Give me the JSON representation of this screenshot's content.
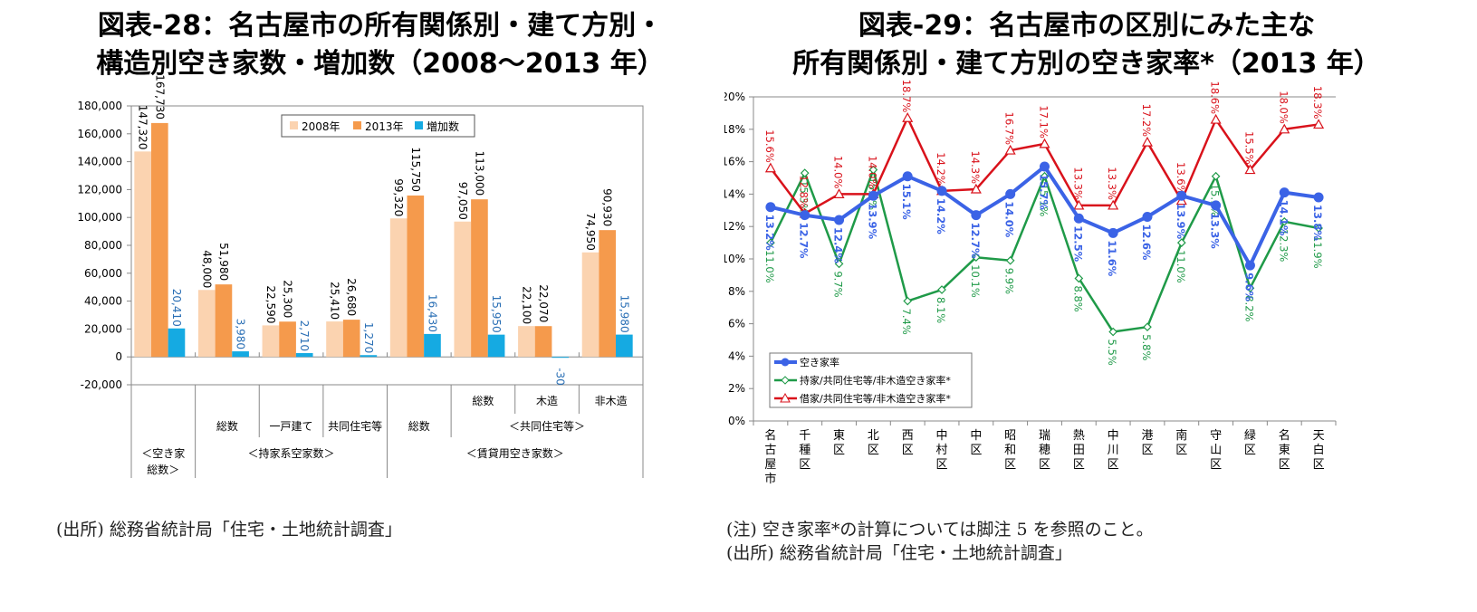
{
  "figure28": {
    "title_line1": "図表-28：名古屋市の所有関係別・建て方別・",
    "title_line2": "構造別空き家数・増加数（2008～2013 年）",
    "source_note": "(出所) 総務省統計局「住宅・土地統計調査」"
  },
  "figure29": {
    "title_line1": "図表-29：名古屋市の区別にみた主な",
    "title_line2": "所有関係別・建て方別の空き家率*（2013 年）",
    "note_line1": "(注) 空き家率*の計算については脚注 5 を参照のこと。",
    "note_line2": "(出所) 総務省統計局「住宅・土地統計調査」"
  },
  "chart_data": [
    {
      "type": "bar",
      "title": "図表-28：名古屋市の所有関係別・建て方別・構造別空き家数・増加数（2008～2013 年）",
      "ylim": [
        -20000,
        180000
      ],
      "yticks": [
        180000,
        160000,
        140000,
        120000,
        100000,
        80000,
        60000,
        40000,
        20000,
        0,
        -20000
      ],
      "ytick_labels": [
        "180,000",
        "160,000",
        "140,000",
        "120,000",
        "100,000",
        "80,000",
        "60,000",
        "40,000",
        "20,000",
        "0",
        "-20,000"
      ],
      "grid": false,
      "legend_position": "top-right",
      "categories": [
        "空き家総数",
        "持家系 総数",
        "持家系 一戸建て",
        "持家系 共同住宅等",
        "賃貸用 総数",
        "賃貸用 共同住宅等 総数",
        "賃貸用 共同住宅等 木造",
        "賃貸用 共同住宅等 非木造"
      ],
      "series": [
        {
          "name": "2008年",
          "color": "#fbd3b0",
          "values": [
            147320,
            48000,
            22590,
            25410,
            99320,
            97050,
            22100,
            74950
          ],
          "labels": [
            "147,320",
            "48,000",
            "22,590",
            "25,410",
            "99,320",
            "97,050",
            "22,100",
            "74,950"
          ],
          "label_color": "#000000"
        },
        {
          "name": "2013年",
          "color": "#f59a4c",
          "values": [
            167730,
            51980,
            25300,
            26680,
            115750,
            113000,
            22070,
            90930
          ],
          "labels": [
            "167,730",
            "51,980",
            "25,300",
            "26,680",
            "115,750",
            "113,000",
            "22,070",
            "90,930"
          ],
          "label_color": "#000000"
        },
        {
          "name": "増加数",
          "color": "#15aae2",
          "values": [
            20410,
            3980,
            2710,
            1270,
            16430,
            15950,
            -30,
            15980
          ],
          "labels": [
            "20,410",
            "3,980",
            "2,710",
            "1,270",
            "16,430",
            "15,950",
            "-30",
            "15,980"
          ],
          "label_color": "#2a6fb5"
        }
      ],
      "category_axis": {
        "row1": [
          {
            "label": "総数",
            "span": [
              5,
              5
            ]
          },
          {
            "label": "木造",
            "span": [
              6,
              6
            ]
          },
          {
            "label": "非木造",
            "span": [
              7,
              7
            ]
          }
        ],
        "row2": [
          {
            "label": "総数",
            "span": [
              1,
              1
            ]
          },
          {
            "label": "一戸建て",
            "span": [
              2,
              2
            ]
          },
          {
            "label": "共同住宅等",
            "span": [
              3,
              3
            ]
          },
          {
            "label": "総数",
            "span": [
              4,
              4
            ]
          },
          {
            "label": "＜共同住宅等＞",
            "span": [
              5,
              7
            ]
          }
        ],
        "row3": [
          {
            "label": "＜空き家",
            "label2": "総数＞",
            "span": [
              0,
              0
            ]
          },
          {
            "label": "＜持家系空家数＞",
            "span": [
              1,
              3
            ]
          },
          {
            "label": "＜賃貸用空き家数＞",
            "span": [
              4,
              7
            ]
          }
        ]
      }
    },
    {
      "type": "line",
      "title": "図表-29：名古屋市の区別にみた主な所有関係別・建て方別の空き家率*（2013 年）",
      "ylim": [
        0,
        20
      ],
      "yticks": [
        20,
        18,
        16,
        14,
        12,
        10,
        8,
        6,
        4,
        2,
        0
      ],
      "ytick_labels": [
        "20%",
        "18%",
        "16%",
        "14%",
        "12%",
        "10%",
        "8%",
        "6%",
        "4%",
        "2%",
        "0%"
      ],
      "grid": false,
      "legend_position": "bottom-left",
      "categories": [
        "名古屋市",
        "千種区",
        "東区",
        "北区",
        "西区",
        "中村区",
        "中区",
        "昭和区",
        "瑞穂区",
        "熱田区",
        "中川区",
        "港区",
        "南区",
        "守山区",
        "緑区",
        "名東区",
        "天白区"
      ],
      "series": [
        {
          "name": "空き家率",
          "color": "#3b63e6",
          "marker": "circle",
          "values": [
            13.2,
            12.7,
            12.4,
            13.9,
            15.1,
            14.2,
            12.7,
            14.0,
            15.7,
            12.5,
            11.6,
            12.6,
            13.9,
            13.3,
            9.6,
            14.1,
            13.8
          ]
        },
        {
          "name": "持家/共同住宅等/非木造空き家率*",
          "color": "#1f9a48",
          "marker": "diamond",
          "values": [
            11.0,
            15.3,
            9.7,
            15.5,
            7.4,
            8.1,
            10.1,
            9.9,
            15.1,
            8.8,
            5.5,
            5.8,
            11.0,
            15.1,
            8.2,
            12.3,
            11.9
          ]
        },
        {
          "name": "借家/共同住宅等/非木造空き家率*",
          "color": "#d9121b",
          "marker": "triangle",
          "values": [
            15.6,
            12.8,
            14.0,
            14.0,
            18.7,
            14.2,
            14.3,
            16.7,
            17.1,
            13.3,
            13.3,
            17.2,
            13.6,
            18.6,
            15.5,
            18.0,
            18.3
          ]
        }
      ]
    }
  ]
}
